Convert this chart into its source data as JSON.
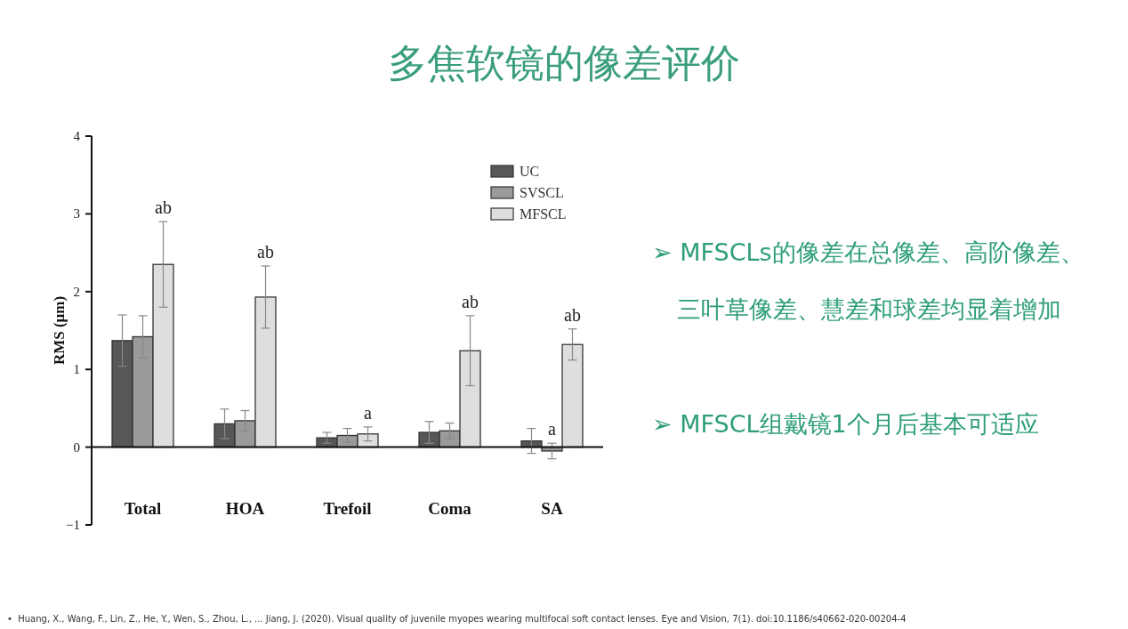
{
  "chart_data": {
    "type": "bar",
    "title": "多焦软镜的像差评价",
    "ylabel": "RMS (μm)",
    "categories": [
      "Total",
      "HOA",
      "Trefoil",
      "Coma",
      "SA"
    ],
    "series": [
      {
        "name": "UC",
        "color": "#575757",
        "values": [
          1.37,
          0.3,
          0.12,
          0.19,
          0.08
        ],
        "errors": [
          0.33,
          0.19,
          0.07,
          0.14,
          0.16
        ]
      },
      {
        "name": "SVSCL",
        "color": "#9a9a9a",
        "values": [
          1.42,
          0.34,
          0.15,
          0.21,
          -0.05
        ],
        "errors": [
          0.27,
          0.13,
          0.09,
          0.1,
          0.1
        ]
      },
      {
        "name": "MFSCL",
        "color": "#dedede",
        "values": [
          2.35,
          1.93,
          0.17,
          1.24,
          1.32
        ],
        "errors": [
          0.55,
          0.4,
          0.09,
          0.45,
          0.2
        ]
      }
    ],
    "ylim": [
      -1,
      4
    ],
    "yticks": [
      {
        "value": -1,
        "label": "−1"
      },
      0,
      1,
      2,
      3,
      4
    ],
    "legend": "top right",
    "annotations": [
      "ab",
      "ab",
      {
        "text": "a",
        "x": "Trefoil",
        "y": 0.26
      },
      "ab",
      {
        "text": "a",
        "x": "SA",
        "y": 0.05
      },
      "ab",
      "➢ MFSCLs的像差在总像差、高阶像差、三叶草像差、慧差和球差均显着增加",
      "➢ MFSCL组戴镜1个月后基本可适应",
      "•  Huang, X., Wang, F., Lin, Z., He, Y., Wen, S., Zhou, L., ... Jiang, J. (2020). Visual quality of juvenile myopes wearing multifocal soft contact lenses. Eye and Vision, 7(1). doi:10.1186/s40662-020-00204-4"
    ]
  }
}
